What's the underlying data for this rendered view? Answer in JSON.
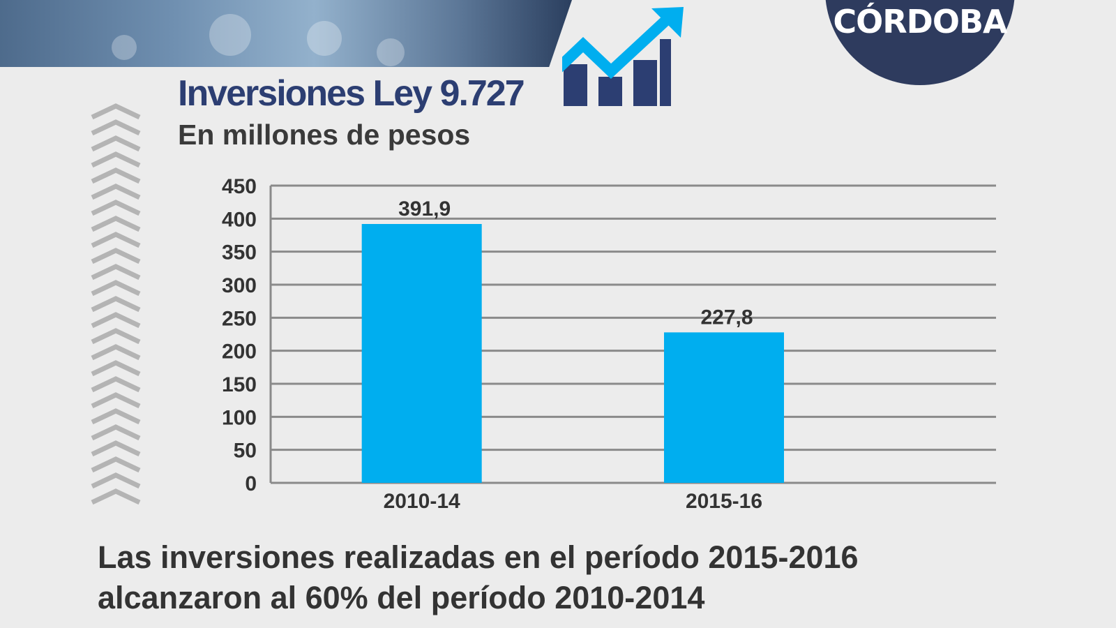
{
  "header": {
    "logo_text": "CÓRDOBA",
    "title": "Inversiones Ley 9.727",
    "subtitle": "En millones de pesos"
  },
  "icons": [
    "growth-arrow-icon",
    "chevron-up-icon"
  ],
  "colors": {
    "bar": "#00aeef",
    "title": "#2c3e72",
    "logo_bg": "#2e3b5e",
    "gridline": "#8a8a8a",
    "background": "#ececec"
  },
  "chart_data": {
    "type": "bar",
    "categories": [
      "2010-14",
      "2015-16"
    ],
    "values": [
      391.9,
      227.8
    ],
    "value_labels": [
      "391,9",
      "227,8"
    ],
    "title": "Inversiones Ley 9.727",
    "subtitle": "En millones de pesos",
    "xlabel": "",
    "ylabel": "",
    "ylim": [
      0,
      450
    ],
    "yticks": [
      0,
      50,
      100,
      150,
      200,
      250,
      300,
      350,
      400,
      450
    ],
    "grid": true,
    "legend": "none"
  },
  "footer": {
    "line1": "Las inversiones realizadas en el período 2015-2016",
    "line2": "alcanzaron al 60% del período 2010-2014"
  }
}
